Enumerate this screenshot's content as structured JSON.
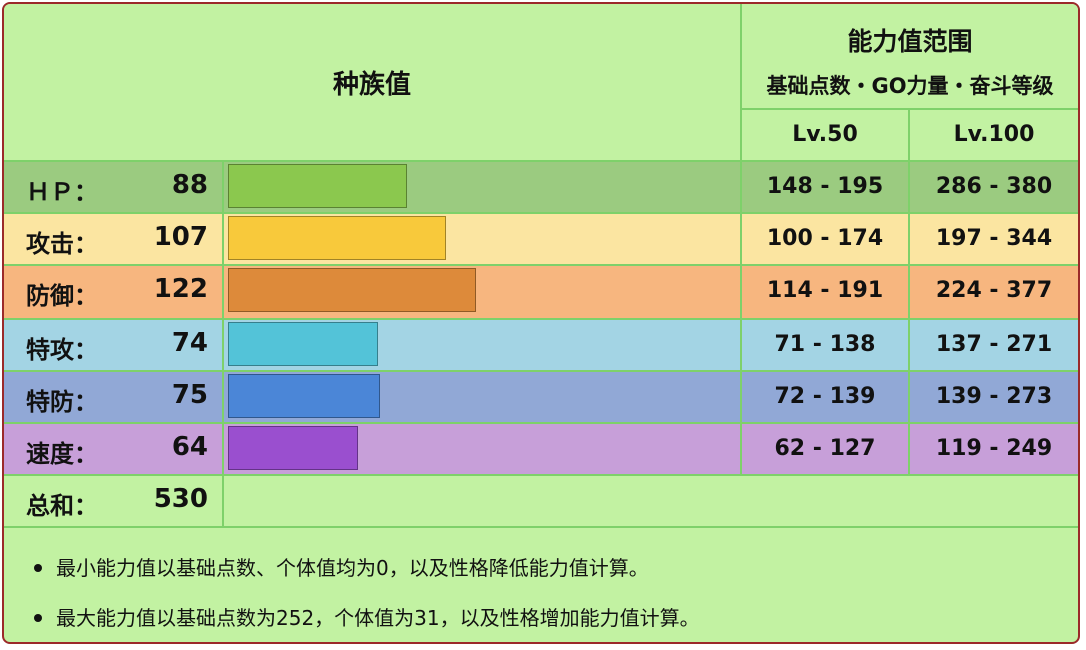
{
  "header": {
    "base_stats": "种族值",
    "range_title": "能力值范围",
    "range_subtitle": "基础点数・GO力量・奋斗等级",
    "lv50": "Lv.50",
    "lv100": "Lv.100"
  },
  "stats": [
    {
      "label": "ＨＰ：",
      "value": "88",
      "num": 88,
      "lv50": "148 - 195",
      "lv100": "286 - 380",
      "row_color": "#9bcb80",
      "bar_color": "#8bc84e"
    },
    {
      "label": "攻击：",
      "value": "107",
      "num": 107,
      "lv50": "100 - 174",
      "lv100": "197 - 344",
      "row_color": "#fbe5a1",
      "bar_color": "#f8c93b"
    },
    {
      "label": "防御：",
      "value": "122",
      "num": 122,
      "lv50": "114 - 191",
      "lv100": "224 - 377",
      "row_color": "#f7b67f",
      "bar_color": "#dd8a3a"
    },
    {
      "label": "特攻：",
      "value": "74",
      "num": 74,
      "lv50": "71 - 138",
      "lv100": "137 - 271",
      "row_color": "#a3d4e4",
      "bar_color": "#53c3d8"
    },
    {
      "label": "特防：",
      "value": "75",
      "num": 75,
      "lv50": "72 - 139",
      "lv100": "139 - 273",
      "row_color": "#91a8d6",
      "bar_color": "#4b86d7"
    },
    {
      "label": "速度：",
      "value": "64",
      "num": 64,
      "lv50": "62 - 127",
      "lv100": "119 - 249",
      "row_color": "#c79fd9",
      "bar_color": "#9a4fcf"
    }
  ],
  "total": {
    "label": "总和：",
    "value": "530"
  },
  "notes": [
    "最小能力值以基础点数、个体值均为0，以及性格降低能力值计算。",
    "最大能力值以基础点数为252，个体值为31，以及性格增加能力值计算。"
  ]
}
